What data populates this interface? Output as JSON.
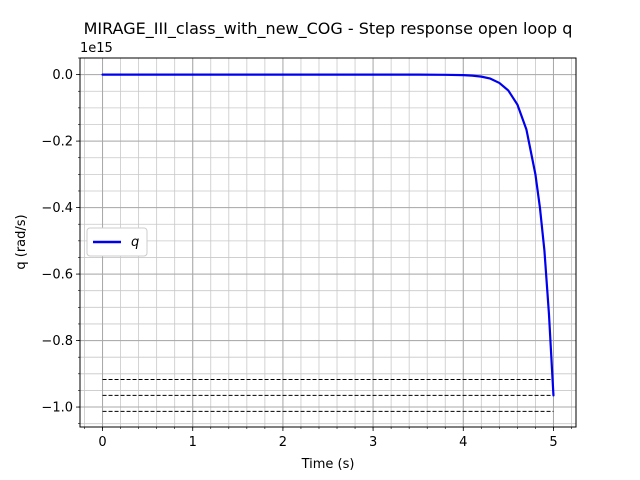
{
  "chart_data": {
    "type": "line",
    "title": "MIRAGE_III_class_with_new_COG - Step response open loop q",
    "xlabel": "Time (s)",
    "ylabel": "q (rad/s)",
    "y_offset_label": "1e15",
    "xlim": [
      -0.25,
      5.25
    ],
    "ylim": [
      -1.06,
      0.05
    ],
    "x_ticks": [
      0,
      1,
      2,
      3,
      4,
      5
    ],
    "x_tick_labels": [
      "0",
      "1",
      "2",
      "3",
      "4",
      "5"
    ],
    "y_ticks": [
      0.0,
      -0.2,
      -0.4,
      -0.6,
      -0.8,
      -1.0
    ],
    "y_tick_labels": [
      "0.0",
      "−0.2",
      "−0.4",
      "−0.6",
      "−0.8",
      "−1.0"
    ],
    "x_minor_step": 0.2,
    "y_minor_step": 0.05,
    "grid": true,
    "legend": {
      "placement": "center-left",
      "entries": [
        "q"
      ]
    },
    "series": [
      {
        "name": "q",
        "color": "#0000ee",
        "x": [
          0,
          0.5,
          1.0,
          1.5,
          2.0,
          2.5,
          3.0,
          3.5,
          3.8,
          4.0,
          4.1,
          4.2,
          4.3,
          4.4,
          4.5,
          4.6,
          4.7,
          4.8,
          4.85,
          4.9,
          4.95,
          5.0
        ],
        "y": [
          0,
          0,
          0,
          0,
          0,
          0,
          0,
          0,
          -0.0005,
          -0.0015,
          -0.003,
          -0.006,
          -0.012,
          -0.025,
          -0.048,
          -0.09,
          -0.165,
          -0.3,
          -0.4,
          -0.53,
          -0.72,
          -0.965
        ]
      }
    ],
    "reference_lines": [
      {
        "y": -0.917,
        "style": "dashed",
        "color": "#000000",
        "x_range": [
          0,
          5
        ]
      },
      {
        "y": -0.965,
        "style": "dashed",
        "color": "#000000",
        "x_range": [
          0,
          5
        ]
      },
      {
        "y": -1.013,
        "style": "dashed",
        "color": "#000000",
        "x_range": [
          0,
          5
        ]
      }
    ]
  }
}
